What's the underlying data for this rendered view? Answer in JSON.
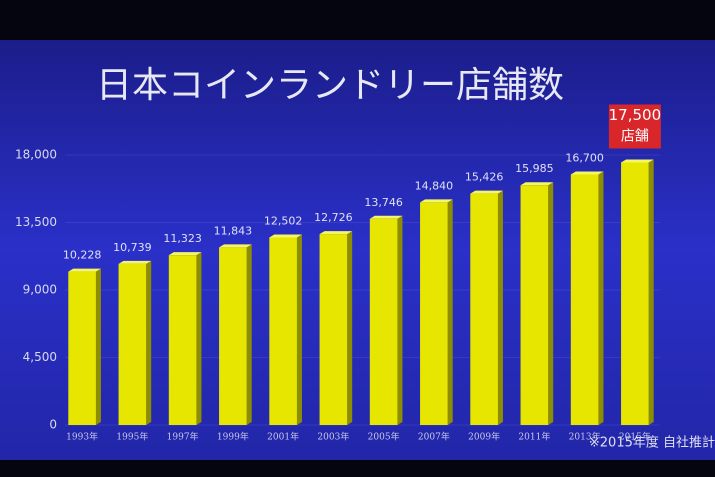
{
  "chart_data": {
    "type": "bar",
    "title": "日本コインランドリー店舗数",
    "categories": [
      "1993年",
      "1995年",
      "1997年",
      "1999年",
      "2001年",
      "2003年",
      "2005年",
      "2007年",
      "2009年",
      "2011年",
      "2013年",
      "2015年"
    ],
    "values": [
      10228,
      10739,
      11323,
      11843,
      12502,
      12726,
      13746,
      14840,
      15426,
      15985,
      16700,
      17500
    ],
    "value_labels": [
      "10,228",
      "10,739",
      "11,323",
      "11,843",
      "12,502",
      "12,726",
      "13,746",
      "14,840",
      "15,426",
      "15,985",
      "16,700",
      "17,500"
    ],
    "annotation": "店舗",
    "footnote": "※2015年度 自社推計",
    "color": "#e6e600",
    "highlight_color": "#d8262b",
    "ylim": [
      0,
      18000
    ],
    "yticks": [
      0,
      {
        "value": 4500,
        "label": "4,500"
      },
      {
        "value": 9000,
        "label": "9,000"
      },
      {
        "value": 13500,
        "label": "13,500"
      },
      {
        "value": 18000,
        "label": "18,000"
      }
    ],
    "grid": true
  }
}
